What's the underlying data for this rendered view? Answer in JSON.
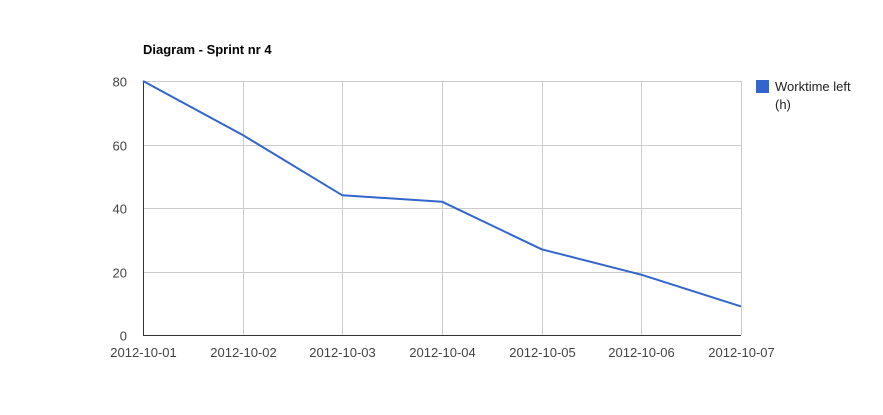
{
  "chart_data": {
    "type": "line",
    "title": "Diagram - Sprint nr 4",
    "xlabel": "",
    "ylabel": "",
    "categories": [
      "2012-10-01",
      "2012-10-02",
      "2012-10-03",
      "2012-10-04",
      "2012-10-05",
      "2012-10-06",
      "2012-10-07"
    ],
    "series": [
      {
        "name": "Worktime left (h)",
        "legend_lines": [
          "Worktime left",
          "(h)"
        ],
        "color": "#3366cc",
        "values": [
          80,
          63,
          44,
          42,
          27,
          19,
          9
        ]
      }
    ],
    "ylim": [
      0,
      80
    ],
    "yticks": [
      0,
      20,
      40,
      60,
      80
    ],
    "grid": true,
    "legend_position": "right"
  }
}
